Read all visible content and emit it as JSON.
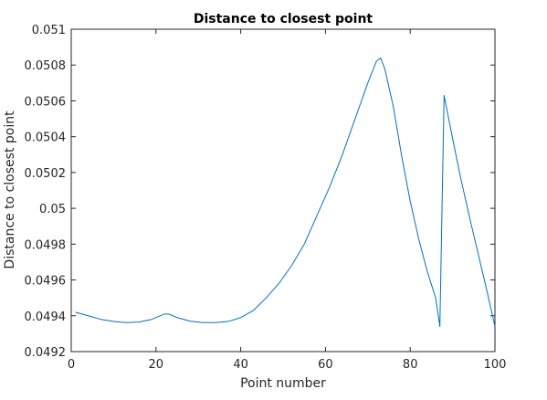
{
  "chart_data": {
    "type": "line",
    "title": "Distance to closest point",
    "xlabel": "Point number",
    "ylabel": "Distance to closest point",
    "xlim": [
      0,
      100
    ],
    "ylim": [
      0.0492,
      0.051
    ],
    "grid": false,
    "legend": "none",
    "xticks": [
      0,
      20,
      40,
      60,
      80,
      100
    ],
    "xtick_labels": [
      "0",
      "20",
      "40",
      "60",
      "80",
      "100"
    ],
    "yticks": [
      0.0492,
      0.0494,
      0.0496,
      0.0498,
      0.05,
      0.0502,
      0.0504,
      0.0506,
      0.0508,
      0.051
    ],
    "ytick_labels": [
      "0.0492",
      "0.0494",
      "0.0496",
      "0.0498",
      "0.05",
      "0.0502",
      "0.0504",
      "0.0506",
      "0.0508",
      "0.051"
    ],
    "series": [
      {
        "color": "#0072BD",
        "x": [
          1,
          4,
          7,
          10,
          13,
          16,
          19,
          21,
          22,
          23,
          25,
          28,
          31,
          34,
          37,
          40,
          43,
          46,
          49,
          52,
          55,
          58,
          61,
          64,
          67,
          70,
          72,
          73,
          74,
          76,
          78,
          80,
          82,
          84,
          86,
          87,
          88,
          90,
          92,
          94,
          96,
          98,
          100
        ],
        "y": [
          0.04942,
          0.0494,
          0.04938,
          0.049368,
          0.049362,
          0.049365,
          0.04938,
          0.0494,
          0.04941,
          0.04941,
          0.04939,
          0.04937,
          0.049362,
          0.049362,
          0.049368,
          0.04939,
          0.04943,
          0.0495,
          0.04958,
          0.04968,
          0.0498,
          0.04996,
          0.05012,
          0.0503,
          0.0505,
          0.0507,
          0.05082,
          0.05084,
          0.05078,
          0.05057,
          0.05029,
          0.05004,
          0.04983,
          0.04965,
          0.0495,
          0.04934,
          0.05063,
          0.05039,
          0.05016,
          0.04995,
          0.04975,
          0.04955,
          0.04934
        ]
      }
    ]
  }
}
